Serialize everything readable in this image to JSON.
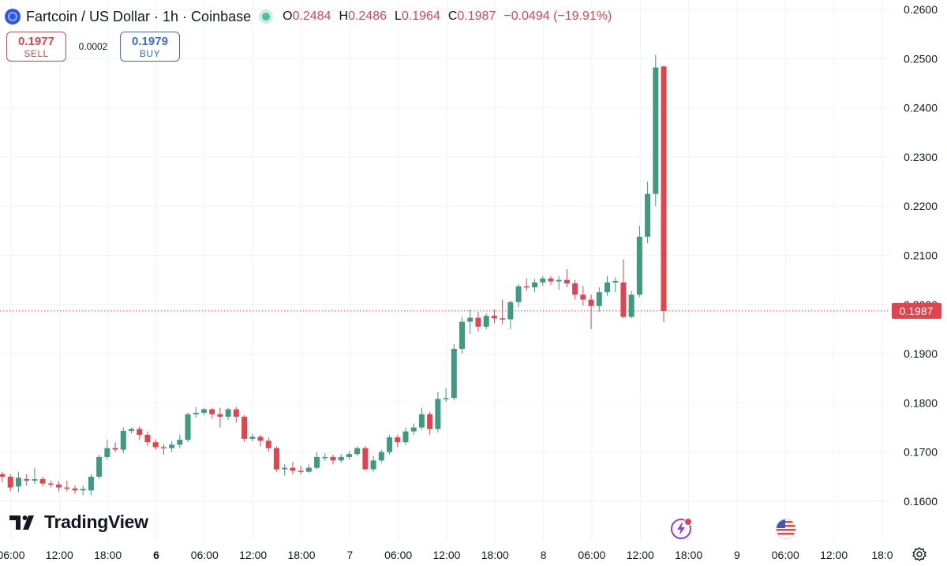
{
  "header": {
    "symbol_title": "Fartcoin / US Dollar · 1h · Coinbase",
    "open_label": "O",
    "open": "0.2484",
    "high_label": "H",
    "high": "0.2486",
    "low_label": "L",
    "low": "0.1964",
    "close_label": "C",
    "close": "0.1987",
    "change": "−0.0494 (−19.91%)"
  },
  "trade": {
    "sell_price": "0.1977",
    "sell_label": "SELL",
    "spread": "0.0002",
    "buy_price": "0.1979",
    "buy_label": "BUY"
  },
  "brand": {
    "name": "TradingView"
  },
  "icons": {
    "coin": "fartcoin-logo-icon",
    "live": "market-open-dot-icon",
    "event1": "earnings-flash-icon",
    "event2": "us-flag-event-icon",
    "settings": "gear-icon"
  },
  "colors": {
    "up": "#3f9a80",
    "down": "#e0454e",
    "grid": "#f0f2f5",
    "price_line": "#e0454e",
    "last_price_bg": "#e0454e"
  },
  "chart_data": {
    "type": "candlestick",
    "title": "Fartcoin / US Dollar · 1h · Coinbase",
    "ylim": [
      0.155,
      0.262
    ],
    "y_ticks": [
      "0.1600",
      "0.1700",
      "0.1800",
      "0.1900",
      "0.2000",
      "0.2100",
      "0.2200",
      "0.2300",
      "0.2400",
      "0.2500",
      "0.2600"
    ],
    "x_ticks": [
      "06:00",
      "12:00",
      "18:00",
      "6",
      "06:00",
      "12:00",
      "18:00",
      "7",
      "06:00",
      "12:00",
      "18:00",
      "8",
      "06:00",
      "12:00",
      "18:00",
      "9",
      "06:00",
      "12:00",
      "18:0"
    ],
    "x_tick_bold": [
      false,
      false,
      false,
      true,
      false,
      false,
      false,
      false,
      false,
      false,
      false,
      false,
      false,
      false,
      false,
      false,
      false,
      false,
      false
    ],
    "last_price": "0.1987",
    "candles": [
      [
        0.1655,
        0.165,
        0.166,
        0.1638
      ],
      [
        0.165,
        0.1628,
        0.1655,
        0.162
      ],
      [
        0.163,
        0.1648,
        0.166,
        0.1618
      ],
      [
        0.1645,
        0.1642,
        0.1655,
        0.1632
      ],
      [
        0.1642,
        0.1645,
        0.1668,
        0.1635
      ],
      [
        0.1645,
        0.1636,
        0.165,
        0.163
      ],
      [
        0.1636,
        0.1634,
        0.1642,
        0.1628
      ],
      [
        0.1634,
        0.1628,
        0.164,
        0.162
      ],
      [
        0.1628,
        0.1626,
        0.1642,
        0.162
      ],
      [
        0.1626,
        0.1622,
        0.1632,
        0.1615
      ],
      [
        0.1622,
        0.1625,
        0.1632,
        0.1612
      ],
      [
        0.1622,
        0.165,
        0.1655,
        0.1612
      ],
      [
        0.165,
        0.169,
        0.1695,
        0.1645
      ],
      [
        0.169,
        0.1708,
        0.1725,
        0.1685
      ],
      [
        0.1708,
        0.1705,
        0.172,
        0.17
      ],
      [
        0.1705,
        0.1743,
        0.175,
        0.1698
      ],
      [
        0.1743,
        0.1747,
        0.175,
        0.1738
      ],
      [
        0.1747,
        0.1735,
        0.1752,
        0.1725
      ],
      [
        0.1735,
        0.172,
        0.1742,
        0.1712
      ],
      [
        0.172,
        0.171,
        0.1726,
        0.1705
      ],
      [
        0.171,
        0.1708,
        0.1716,
        0.1695
      ],
      [
        0.1708,
        0.1715,
        0.1722,
        0.17
      ],
      [
        0.1715,
        0.1725,
        0.1735,
        0.1708
      ],
      [
        0.1725,
        0.1777,
        0.178,
        0.172
      ],
      [
        0.1777,
        0.178,
        0.1792,
        0.177
      ],
      [
        0.178,
        0.1787,
        0.179,
        0.1775
      ],
      [
        0.1787,
        0.1777,
        0.179,
        0.1768
      ],
      [
        0.1777,
        0.1772,
        0.179,
        0.175
      ],
      [
        0.1772,
        0.1787,
        0.179,
        0.1765
      ],
      [
        0.1787,
        0.1772,
        0.1792,
        0.176
      ],
      [
        0.1772,
        0.1727,
        0.1775,
        0.172
      ],
      [
        0.1727,
        0.1731,
        0.1737,
        0.1722
      ],
      [
        0.1731,
        0.1723,
        0.1735,
        0.1712
      ],
      [
        0.1723,
        0.1708,
        0.173,
        0.17
      ],
      [
        0.1708,
        0.1665,
        0.1712,
        0.166
      ],
      [
        0.1665,
        0.1668,
        0.1675,
        0.1652
      ],
      [
        0.1668,
        0.1662,
        0.168,
        0.1655
      ],
      [
        0.1662,
        0.166,
        0.1672,
        0.1655
      ],
      [
        0.166,
        0.1668,
        0.1675,
        0.1658
      ],
      [
        0.1668,
        0.169,
        0.17,
        0.1665
      ],
      [
        0.169,
        0.169,
        0.1698,
        0.1682
      ],
      [
        0.169,
        0.1683,
        0.1695,
        0.1675
      ],
      [
        0.1683,
        0.169,
        0.1696,
        0.1678
      ],
      [
        0.169,
        0.1696,
        0.1702,
        0.1685
      ],
      [
        0.1696,
        0.1708,
        0.1712,
        0.1692
      ],
      [
        0.1708,
        0.1665,
        0.1712,
        0.1662
      ],
      [
        0.1665,
        0.1683,
        0.1692,
        0.166
      ],
      [
        0.1683,
        0.17,
        0.1705,
        0.1678
      ],
      [
        0.17,
        0.173,
        0.1735,
        0.1695
      ],
      [
        0.173,
        0.172,
        0.1735,
        0.171
      ],
      [
        0.172,
        0.1742,
        0.175,
        0.1715
      ],
      [
        0.1742,
        0.175,
        0.1758,
        0.1735
      ],
      [
        0.175,
        0.1777,
        0.179,
        0.1745
      ],
      [
        0.1777,
        0.1747,
        0.1782,
        0.1735
      ],
      [
        0.1747,
        0.1808,
        0.1822,
        0.174
      ],
      [
        0.1808,
        0.181,
        0.183,
        0.1802
      ],
      [
        0.181,
        0.191,
        0.192,
        0.1805
      ],
      [
        0.191,
        0.1965,
        0.1975,
        0.19
      ],
      [
        0.1965,
        0.1973,
        0.199,
        0.194
      ],
      [
        0.1973,
        0.1955,
        0.1985,
        0.1945
      ],
      [
        0.1955,
        0.1977,
        0.1982,
        0.195
      ],
      [
        0.1977,
        0.1972,
        0.199,
        0.1962
      ],
      [
        0.1972,
        0.197,
        0.201,
        0.196
      ],
      [
        0.197,
        0.2005,
        0.2008,
        0.195
      ],
      [
        0.2005,
        0.2037,
        0.2042,
        0.1995
      ],
      [
        0.2037,
        0.2035,
        0.2053,
        0.2028
      ],
      [
        0.2035,
        0.2045,
        0.2052,
        0.2025
      ],
      [
        0.2045,
        0.2053,
        0.2058,
        0.2038
      ],
      [
        0.2053,
        0.2047,
        0.2058,
        0.204
      ],
      [
        0.2047,
        0.205,
        0.2058,
        0.203
      ],
      [
        0.205,
        0.2043,
        0.2072,
        0.2035
      ],
      [
        0.2043,
        0.202,
        0.205,
        0.201
      ],
      [
        0.202,
        0.201,
        0.2038,
        0.1998
      ],
      [
        0.201,
        0.1997,
        0.202,
        0.195
      ],
      [
        0.1997,
        0.2025,
        0.2035,
        0.1985
      ],
      [
        0.2025,
        0.2045,
        0.2058,
        0.2018
      ],
      [
        0.2045,
        0.2048,
        0.2055,
        0.2025
      ],
      [
        0.2045,
        0.1975,
        0.2092,
        0.1972
      ],
      [
        0.1975,
        0.202,
        0.2028,
        0.1972
      ],
      [
        0.202,
        0.2138,
        0.216,
        0.2015
      ],
      [
        0.2138,
        0.2225,
        0.225,
        0.2125
      ],
      [
        0.2225,
        0.2482,
        0.2508,
        0.22
      ],
      [
        0.2484,
        0.1987,
        0.2486,
        0.1964
      ]
    ]
  }
}
